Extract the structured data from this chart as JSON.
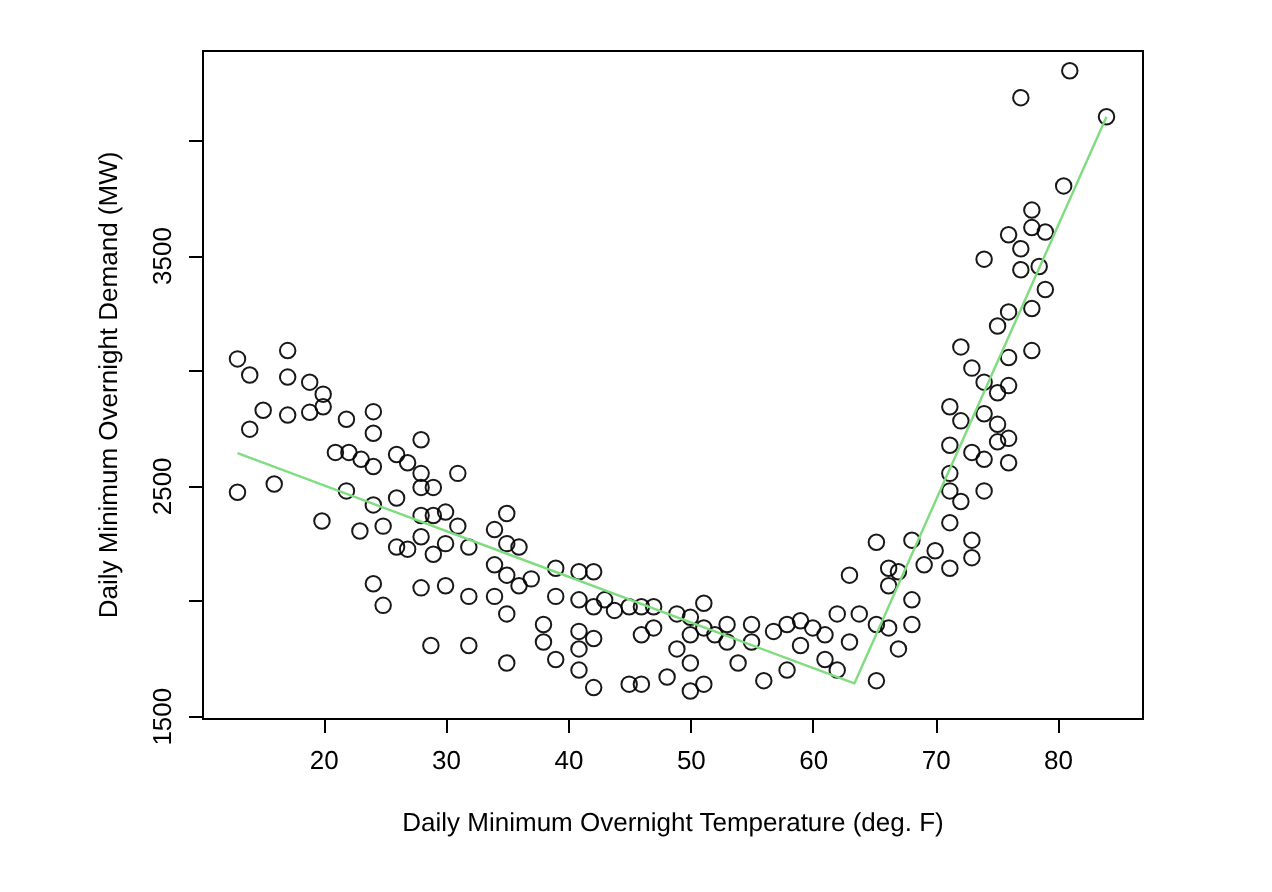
{
  "chart_data": {
    "type": "scatter",
    "xlabel": "Daily Minimum Overnight Temperature (deg. F)",
    "ylabel": "Daily Minimum Overnight Demand (MW)",
    "xlim": [
      10.1,
      86.9
    ],
    "ylim": [
      1490,
      4390
    ],
    "xticks": [
      20,
      30,
      40,
      50,
      60,
      70,
      80
    ],
    "yticks": [
      1500,
      {
        "value": 2000,
        "label": null
      },
      2500,
      {
        "value": 3000,
        "label": null
      },
      3500,
      {
        "value": 4000,
        "label": null
      }
    ],
    "grid": false,
    "series": [
      {
        "type": "scatter",
        "marker": "circle",
        "color": "#000000",
        "x": [
          13.0,
          14.0,
          14.0,
          15.1,
          13.0,
          16.0,
          17.1,
          17.1,
          17.1,
          18.9,
          18.9,
          20,
          20,
          21.0,
          21.9,
          21.9,
          19.9,
          22.1,
          23.1,
          23.0,
          24.1,
          24.1,
          24.1,
          24.1,
          24.1,
          24.9,
          24.9,
          26.0,
          26.0,
          26.0,
          26.9,
          26.9,
          28.0,
          28.0,
          28.0,
          28.0,
          28.0,
          28.0,
          29.0,
          29.0,
          29.0,
          28.8,
          30.0,
          30.0,
          30.0,
          31.0,
          31.0,
          31.9,
          31.9,
          31.9,
          34.0,
          34.0,
          34.0,
          35.0,
          35.0,
          35.0,
          35.0,
          35.0,
          36.0,
          36.0,
          37.0,
          38.0,
          38.0,
          39.0,
          39.0,
          39.0,
          40.9,
          40.9,
          40.9,
          40.9,
          40.9,
          42.1,
          42.1,
          42.1,
          42.1,
          43.0,
          43.8,
          45.0,
          45.0,
          46.0,
          46.0,
          46.0,
          47.0,
          47.0,
          48.1,
          48.9,
          48.9,
          50,
          50,
          50,
          50,
          51.1,
          51.1,
          51.1,
          52.0,
          53.0,
          53.0,
          53.9,
          55.0,
          55.0,
          56.0,
          56.8,
          57.9,
          57.9,
          59.0,
          59.0,
          60.0,
          61.0,
          61.0,
          62.0,
          62.0,
          63.0,
          63.0,
          63.8,
          65.2,
          65.2,
          65.2,
          66.2,
          66.2,
          66.2,
          67.0,
          67.0,
          68.1,
          68.1,
          68.1,
          69.1,
          70.0,
          71.2,
          71.2,
          71.2,
          71.2,
          71.2,
          71.2,
          72.1,
          72.1,
          72.1,
          73.0,
          73.0,
          73.0,
          73.0,
          74.0,
          74.0,
          74.0,
          74.0,
          74.0,
          75.1,
          75.1,
          75.1,
          75.1,
          76.0,
          76.0,
          76.0,
          76.0,
          76.0,
          76.0,
          77.0,
          77.0,
          77.0,
          77.9,
          77.9,
          77.9,
          77.9,
          78.5,
          79.0,
          79.0,
          80.5,
          81.0,
          84.0
        ],
        "values": [
          3049,
          2979,
          2744,
          2826,
          2470,
          2506,
          3085,
          2970,
          2805,
          2948,
          2817,
          2896,
          2841,
          2643,
          2787,
          2476,
          2345,
          2643,
          2613,
          2302,
          2820,
          2726,
          2582,
          2415,
          2073,
          2323,
          1979,
          2634,
          2445,
          2232,
          2598,
          2223,
          2698,
          2552,
          2491,
          2369,
          2277,
          2055,
          2491,
          2369,
          2201,
          1805,
          2384,
          2247,
          2064,
          2552,
          2323,
          2232,
          2018,
          1805,
          2308,
          2155,
          2018,
          2378,
          2247,
          2110,
          1942,
          1729,
          2232,
          2064,
          2094,
          1896,
          1820,
          2140,
          1744,
          2018,
          2125,
          2003,
          1866,
          1790,
          1698,
          2125,
          1973,
          1835,
          1622,
          2003,
          1957,
          1973,
          1637,
          1973,
          1851,
          1637,
          1973,
          1881,
          1668,
          1942,
          1790,
          1927,
          1851,
          1729,
          1607,
          1988,
          1881,
          1637,
          1851,
          1896,
          1820,
          1729,
          1896,
          1820,
          1652,
          1866,
          1896,
          1698,
          1912,
          1805,
          1881,
          1851,
          1744,
          1942,
          1698,
          2110,
          1820,
          1942,
          2253,
          1896,
          1652,
          2140,
          2064,
          1881,
          2125,
          1790,
          2262,
          2003,
          1896,
          2155,
          2216,
          2841,
          2674,
          2552,
          2476,
          2338,
          2140,
          2780,
          2430,
          3101,
          3009,
          2643,
          2262,
          2186,
          3482,
          2948,
          2811,
          2613,
          2476,
          3192,
          2902,
          2765,
          2689,
          3588,
          3253,
          3055,
          2933,
          2704,
          2598,
          4183,
          3527,
          3436,
          3695,
          3619,
          3268,
          3085,
          3450,
          3600,
          3350,
          3800,
          4300,
          4100
        ]
      },
      {
        "type": "line",
        "line_style": "solid",
        "color": "#7fdc7f",
        "x": [
          13,
          63.4,
          84
        ],
        "values": [
          2640,
          1640,
          4100
        ]
      }
    ]
  }
}
